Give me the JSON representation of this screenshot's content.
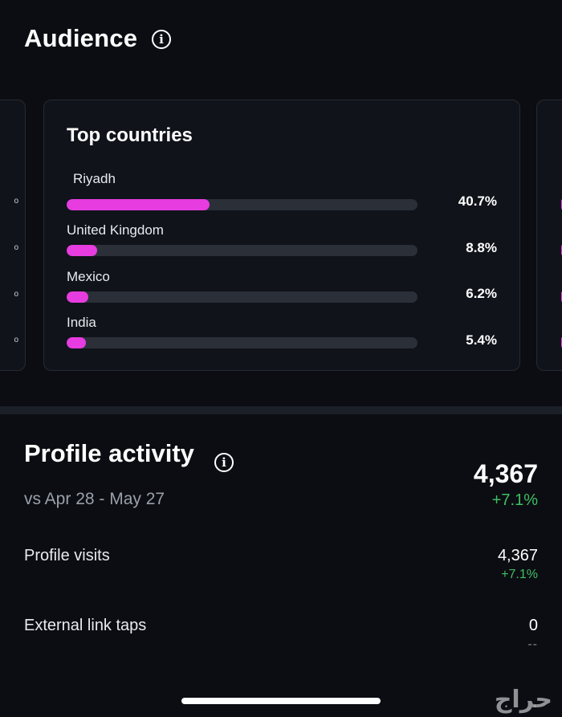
{
  "audience": {
    "title": "Audience",
    "top_countries": {
      "title": "Top countries",
      "rows": [
        {
          "label": "Riyadh",
          "value": "40.7%",
          "fraction": 0.407
        },
        {
          "label": "United Kingdom",
          "value": "8.8%",
          "fraction": 0.088
        },
        {
          "label": "Mexico",
          "value": "6.2%",
          "fraction": 0.062
        },
        {
          "label": "India",
          "value": "5.4%",
          "fraction": 0.054
        }
      ]
    }
  },
  "profile_activity": {
    "title": "Profile activity",
    "comparison": "vs Apr 28 - May 27",
    "total": "4,367",
    "total_change": "+7.1%",
    "metrics": [
      {
        "label": "Profile visits",
        "value": "4,367",
        "change": "+7.1%"
      },
      {
        "label": "External link taps",
        "value": "0",
        "change": "--"
      }
    ]
  },
  "watermark_text": "حراج",
  "colors": {
    "accent": "#e63ce0",
    "positive": "#3fbf62",
    "background": "#0b0d12"
  }
}
